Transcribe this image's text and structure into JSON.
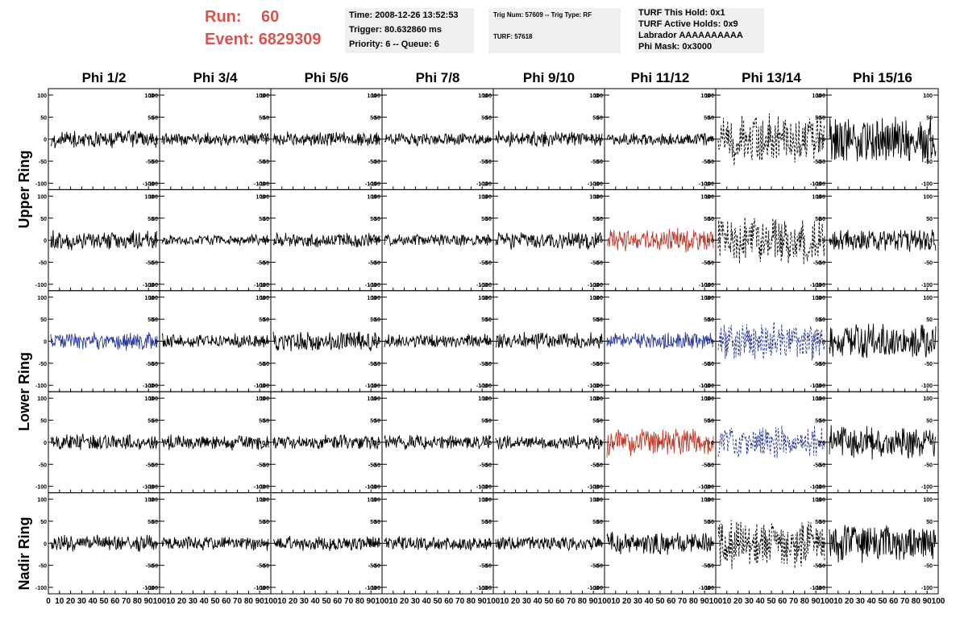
{
  "header": {
    "run_label": "Run:",
    "run_value": "60",
    "event_label": "Event:",
    "event_value": "6829309",
    "info_box_1": [
      "Time: 2008-12-26 13:52:53",
      "Trigger: 80.632860 ms",
      "Priority: 6 -- Queue: 6"
    ],
    "info_box_2": [
      "Trig Num: 57609 -- Trig Type: RF",
      "TURF: 57618"
    ],
    "info_box_3": [
      "TURF This Hold: 0x1",
      "TURF Active Holds: 0x9",
      "Labrador AAAAAAAAAA",
      "Phi Mask: 0x3000"
    ]
  },
  "colors": {
    "run_text": "#d9534f",
    "trace_default": "#000000",
    "trace_red": "#c0392b",
    "trace_blue": "#2b3a9b",
    "info_box_bg": "#f0f0f0"
  },
  "chart_data": {
    "type": "line",
    "title": "",
    "columns": [
      "Phi 1/2",
      "Phi 3/4",
      "Phi 5/6",
      "Phi 7/8",
      "Phi 9/10",
      "Phi 11/12",
      "Phi 13/14",
      "Phi 15/16"
    ],
    "row_labels": [
      {
        "label": "Upper Ring",
        "rows": [
          0,
          1
        ]
      },
      {
        "label": "Lower Ring",
        "rows": [
          2,
          3
        ]
      },
      {
        "label": "Nadir Ring",
        "rows": [
          4
        ]
      }
    ],
    "xlim": [
      0,
      100
    ],
    "ylim": [
      -100,
      100
    ],
    "x_tick_labels": [
      "0",
      "10",
      "20",
      "30",
      "40",
      "50",
      "60",
      "70",
      "80",
      "90",
      "100"
    ],
    "y_tick_labels": [
      "100",
      "50",
      "0",
      "-50",
      "-100"
    ],
    "grid": false,
    "amplitude_note": "noise waveforms, approx. amplitude per panel",
    "panels": [
      [
        {
          "amp": 22,
          "color": "black"
        },
        {
          "amp": 16,
          "color": "black"
        },
        {
          "amp": 18,
          "color": "black"
        },
        {
          "amp": 16,
          "color": "black"
        },
        {
          "amp": 20,
          "color": "black"
        },
        {
          "amp": 16,
          "color": "black"
        },
        {
          "amp": 60,
          "color": "black",
          "dashed": true
        },
        {
          "amp": 60,
          "color": "black"
        }
      ],
      [
        {
          "amp": 24,
          "color": "black"
        },
        {
          "amp": 14,
          "color": "black"
        },
        {
          "amp": 18,
          "color": "black"
        },
        {
          "amp": 16,
          "color": "black"
        },
        {
          "amp": 22,
          "color": "black"
        },
        {
          "amp": 30,
          "color": "red"
        },
        {
          "amp": 60,
          "color": "black",
          "dashed": true
        },
        {
          "amp": 30,
          "color": "black"
        }
      ],
      [
        {
          "amp": 22,
          "color": "blue"
        },
        {
          "amp": 18,
          "color": "black"
        },
        {
          "amp": 26,
          "color": "black"
        },
        {
          "amp": 18,
          "color": "black"
        },
        {
          "amp": 22,
          "color": "black"
        },
        {
          "amp": 22,
          "color": "blue"
        },
        {
          "amp": 50,
          "color": "blue",
          "dashed": true
        },
        {
          "amp": 45,
          "color": "black"
        }
      ],
      [
        {
          "amp": 20,
          "color": "black"
        },
        {
          "amp": 20,
          "color": "black"
        },
        {
          "amp": 18,
          "color": "black"
        },
        {
          "amp": 18,
          "color": "black"
        },
        {
          "amp": 18,
          "color": "black"
        },
        {
          "amp": 36,
          "color": "red"
        },
        {
          "amp": 40,
          "color": "blue",
          "dashed": true
        },
        {
          "amp": 40,
          "color": "black"
        }
      ],
      [
        {
          "amp": 22,
          "color": "black"
        },
        {
          "amp": 18,
          "color": "black"
        },
        {
          "amp": 18,
          "color": "black"
        },
        {
          "amp": 18,
          "color": "black"
        },
        {
          "amp": 18,
          "color": "black"
        },
        {
          "amp": 28,
          "color": "black"
        },
        {
          "amp": 60,
          "color": "black",
          "dashed": true
        },
        {
          "amp": 50,
          "color": "black"
        }
      ]
    ]
  }
}
